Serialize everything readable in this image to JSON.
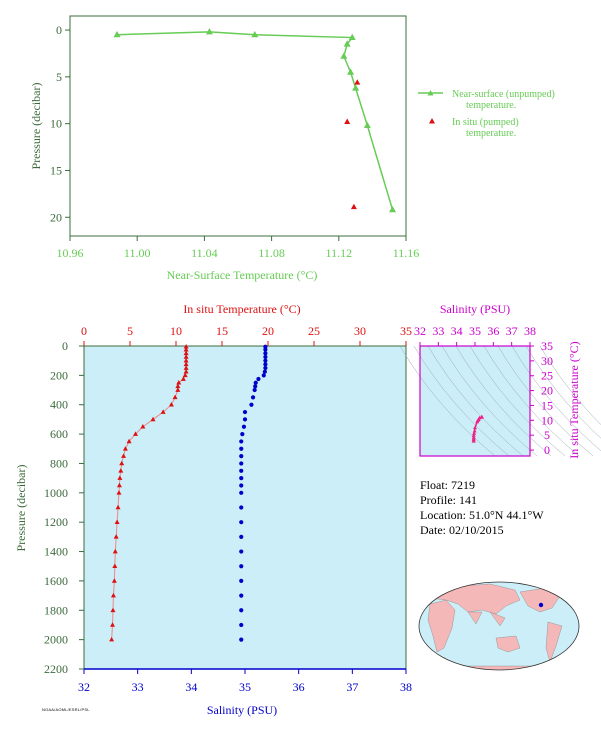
{
  "colors": {
    "green": "#66cc55",
    "axis_green": "#3d6b3d",
    "red": "#dd1111",
    "blue": "#0000cc",
    "magenta": "#cc00cc",
    "pink": "#ee2288",
    "panel_bg": "#cceef8",
    "land": "#f4b8b8",
    "ocean": "#cceef8"
  },
  "info": {
    "float": "Float: 7219",
    "profile": "Profile: 141",
    "location": "Location: 51.0°N 44.1°W",
    "date": "Date: 02/10/2015"
  },
  "credit": "NOAA/AOML/ESRL/PSL",
  "chart_data": [
    {
      "type": "line",
      "title": "",
      "xlabel": "Near-Surface Temperature (°C)",
      "ylabel": "Pressure (decibar)",
      "xlim": [
        10.96,
        11.16
      ],
      "ylim": [
        22,
        -1.5
      ],
      "xticks": [
        "10.96",
        "11.00",
        "11.04",
        "11.08",
        "11.12",
        "11.16"
      ],
      "yticks": [
        "0",
        "5",
        "10",
        "15",
        "20"
      ],
      "legend_position": "right",
      "series": [
        {
          "name": "Near-surface (unpumped) temperature.",
          "style": "line-triangle",
          "x": [
            10.988,
            11.043,
            11.07,
            11.128,
            11.125,
            11.123,
            11.127,
            11.13,
            11.137,
            11.152
          ],
          "y": [
            0.5,
            0.2,
            0.5,
            0.8,
            1.5,
            2.8,
            4.5,
            6.2,
            10.2,
            19.2
          ]
        },
        {
          "name": "In situ (pumped) temperature.",
          "style": "triangle",
          "x": [
            11.131,
            11.125,
            11.129
          ],
          "y": [
            5.6,
            9.8,
            18.9
          ]
        }
      ]
    },
    {
      "type": "scatter",
      "title": "",
      "xlabel_top": "In situ Temperature (°C)",
      "xlabel_bottom": "Salinity (PSU)",
      "ylabel": "Pressure (decibar)",
      "temp_lim": [
        0,
        35
      ],
      "sal_lim": [
        32,
        38
      ],
      "ylim": [
        2200,
        0
      ],
      "temp_ticks": [
        "0",
        "5",
        "10",
        "15",
        "20",
        "25",
        "30",
        "35"
      ],
      "sal_ticks": [
        "32",
        "33",
        "34",
        "35",
        "36",
        "37",
        "38"
      ],
      "yticks": [
        "0",
        "200",
        "400",
        "600",
        "800",
        "1000",
        "1200",
        "1400",
        "1600",
        "1800",
        "2000",
        "2200"
      ],
      "series": [
        {
          "name": "In situ Temperature",
          "pressure": [
            5,
            25,
            50,
            75,
            100,
            125,
            150,
            175,
            200,
            225,
            250,
            275,
            300,
            350,
            400,
            450,
            500,
            550,
            600,
            650,
            700,
            750,
            800,
            850,
            900,
            950,
            1000,
            1100,
            1200,
            1300,
            1400,
            1500,
            1600,
            1700,
            1800,
            1900,
            2000
          ],
          "temp": [
            11.1,
            11.1,
            11.1,
            11.1,
            11.1,
            11.1,
            11.1,
            11.1,
            11.0,
            10.8,
            10.3,
            10.2,
            10.2,
            9.9,
            9.5,
            8.6,
            7.5,
            6.4,
            5.6,
            4.9,
            4.5,
            4.3,
            4.1,
            4.0,
            3.9,
            3.85,
            3.8,
            3.7,
            3.6,
            3.5,
            3.4,
            3.35,
            3.3,
            3.2,
            3.15,
            3.1,
            3.0
          ]
        },
        {
          "name": "Salinity",
          "pressure": [
            5,
            25,
            50,
            75,
            100,
            125,
            150,
            175,
            200,
            225,
            250,
            275,
            300,
            350,
            400,
            450,
            500,
            550,
            600,
            650,
            700,
            750,
            800,
            850,
            900,
            950,
            1000,
            1100,
            1200,
            1300,
            1400,
            1500,
            1600,
            1700,
            1800,
            1900,
            2000
          ],
          "sal": [
            35.38,
            35.38,
            35.38,
            35.38,
            35.38,
            35.38,
            35.38,
            35.37,
            35.35,
            35.25,
            35.2,
            35.19,
            35.18,
            35.15,
            35.12,
            35.0,
            35.0,
            34.98,
            34.95,
            34.93,
            34.93,
            34.93,
            34.93,
            34.93,
            34.93,
            34.93,
            34.93,
            34.93,
            34.93,
            34.93,
            34.93,
            34.93,
            34.93,
            34.93,
            34.93,
            34.93,
            34.93
          ]
        }
      ]
    },
    {
      "type": "scatter",
      "title": "",
      "xlabel": "Salinity (PSU)",
      "ylabel": "In situ Temperature (°C)",
      "xlim": [
        32,
        38
      ],
      "ylim": [
        -2,
        35
      ],
      "xticks": [
        "32",
        "33",
        "34",
        "35",
        "36",
        "37",
        "38"
      ],
      "yticks": [
        "0",
        "5",
        "10",
        "15",
        "20",
        "25",
        "30",
        "35"
      ],
      "series": [
        {
          "name": "T-S",
          "sal": [
            35.38,
            35.37,
            35.35,
            35.25,
            35.2,
            35.18,
            35.15,
            35.12,
            35.0,
            34.98,
            34.95,
            34.93,
            34.93,
            34.93,
            34.93,
            34.93
          ],
          "temp": [
            11.1,
            11.1,
            11.0,
            10.8,
            10.3,
            10.2,
            9.9,
            9.5,
            7.5,
            6.4,
            5.6,
            4.9,
            4.3,
            3.8,
            3.4,
            3.0
          ]
        }
      ]
    }
  ]
}
